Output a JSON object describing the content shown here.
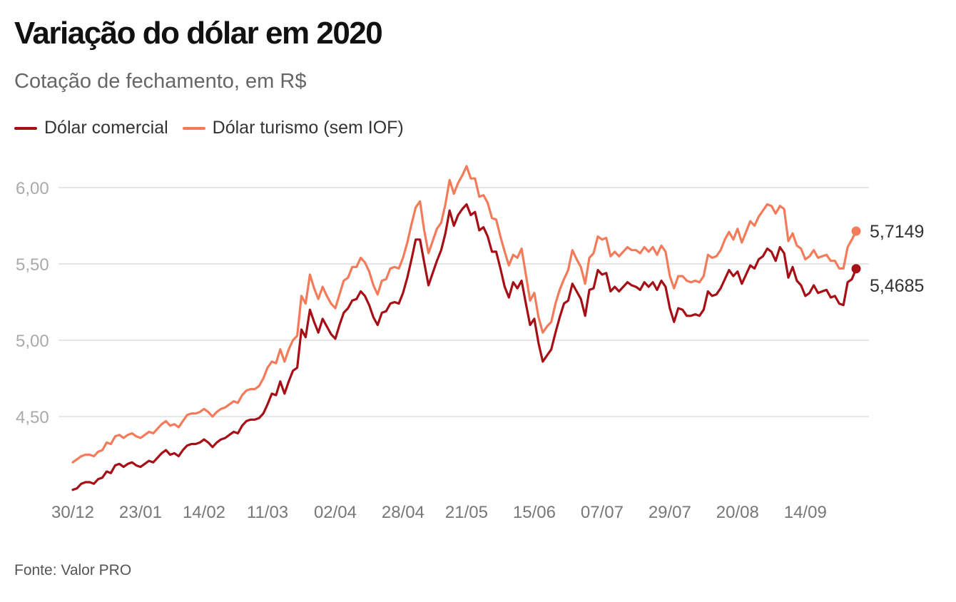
{
  "title": "Variação do dólar em 2020",
  "subtitle": "Cotação de fechamento, em R$",
  "source": "Fonte: Valor PRO",
  "colors": {
    "comercial": "#a50f15",
    "turismo": "#f47b5a",
    "grid": "#dddddd"
  },
  "legend": [
    {
      "label": "Dólar comercial",
      "color": "#a50f15"
    },
    {
      "label": "Dólar turismo (sem IOF)",
      "color": "#f47b5a"
    }
  ],
  "chart_data": {
    "type": "line",
    "title": "Variação do dólar em 2020",
    "subtitle": "Cotação de fechamento, em R$",
    "ylim": [
      4.0,
      6.2
    ],
    "yticks": [
      4.5,
      5.0,
      5.5,
      6.0
    ],
    "ytick_labels": [
      "4,50",
      "5,00",
      "5,50",
      "6,00"
    ],
    "xtick_labels": [
      "30/12",
      "23/01",
      "14/02",
      "11/03",
      "02/04",
      "28/04",
      "21/05",
      "15/06",
      "07/07",
      "29/07",
      "20/08",
      "14/09"
    ],
    "xtick_indices": [
      0,
      16,
      31,
      46,
      62,
      78,
      93,
      109,
      125,
      141,
      157,
      173
    ],
    "grid": true,
    "legend_position": "top-left",
    "end_labels": [
      "5,7149",
      "5,4685"
    ],
    "series": [
      {
        "name": "Dólar comercial",
        "color": "#a50f15",
        "values": [
          4.02,
          4.03,
          4.06,
          4.07,
          4.07,
          4.06,
          4.09,
          4.1,
          4.14,
          4.13,
          4.18,
          4.19,
          4.17,
          4.19,
          4.2,
          4.18,
          4.17,
          4.19,
          4.21,
          4.2,
          4.23,
          4.26,
          4.28,
          4.25,
          4.26,
          4.24,
          4.28,
          4.31,
          4.32,
          4.32,
          4.33,
          4.35,
          4.33,
          4.3,
          4.33,
          4.35,
          4.36,
          4.38,
          4.4,
          4.39,
          4.44,
          4.47,
          4.48,
          4.48,
          4.49,
          4.52,
          4.58,
          4.65,
          4.64,
          4.73,
          4.65,
          4.73,
          4.8,
          4.82,
          5.07,
          5.02,
          5.2,
          5.12,
          5.05,
          5.14,
          5.09,
          5.04,
          5.01,
          5.1,
          5.18,
          5.21,
          5.26,
          5.27,
          5.32,
          5.29,
          5.23,
          5.15,
          5.1,
          5.18,
          5.19,
          5.24,
          5.25,
          5.24,
          5.31,
          5.41,
          5.53,
          5.66,
          5.66,
          5.51,
          5.36,
          5.44,
          5.52,
          5.59,
          5.7,
          5.85,
          5.75,
          5.82,
          5.86,
          5.89,
          5.82,
          5.84,
          5.72,
          5.74,
          5.68,
          5.58,
          5.58,
          5.47,
          5.35,
          5.28,
          5.38,
          5.34,
          5.39,
          5.24,
          5.1,
          5.14,
          4.98,
          4.86,
          4.9,
          4.94,
          5.05,
          5.15,
          5.24,
          5.26,
          5.37,
          5.32,
          5.27,
          5.16,
          5.33,
          5.34,
          5.46,
          5.43,
          5.44,
          5.32,
          5.35,
          5.32,
          5.35,
          5.38,
          5.36,
          5.35,
          5.33,
          5.38,
          5.35,
          5.38,
          5.33,
          5.39,
          5.35,
          5.21,
          5.12,
          5.21,
          5.2,
          5.16,
          5.16,
          5.17,
          5.16,
          5.2,
          5.32,
          5.29,
          5.3,
          5.34,
          5.4,
          5.46,
          5.42,
          5.45,
          5.37,
          5.43,
          5.49,
          5.47,
          5.53,
          5.55,
          5.6,
          5.58,
          5.52,
          5.61,
          5.57,
          5.41,
          5.48,
          5.39,
          5.36,
          5.29,
          5.31,
          5.36,
          5.31,
          5.32,
          5.33,
          5.28,
          5.29,
          5.24,
          5.23,
          5.38,
          5.4,
          5.4685
        ]
      },
      {
        "name": "Dólar turismo (sem IOF)",
        "color": "#f47b5a",
        "values": [
          4.2,
          4.22,
          4.24,
          4.25,
          4.25,
          4.24,
          4.27,
          4.28,
          4.33,
          4.32,
          4.37,
          4.38,
          4.36,
          4.38,
          4.39,
          4.37,
          4.36,
          4.38,
          4.4,
          4.39,
          4.42,
          4.45,
          4.47,
          4.44,
          4.45,
          4.43,
          4.47,
          4.51,
          4.52,
          4.52,
          4.53,
          4.55,
          4.53,
          4.5,
          4.53,
          4.55,
          4.56,
          4.58,
          4.6,
          4.59,
          4.64,
          4.67,
          4.68,
          4.68,
          4.7,
          4.75,
          4.82,
          4.86,
          4.85,
          4.94,
          4.86,
          4.94,
          5.0,
          5.03,
          5.29,
          5.24,
          5.43,
          5.34,
          5.27,
          5.35,
          5.29,
          5.24,
          5.21,
          5.3,
          5.39,
          5.41,
          5.48,
          5.48,
          5.54,
          5.51,
          5.45,
          5.36,
          5.3,
          5.39,
          5.4,
          5.47,
          5.48,
          5.47,
          5.54,
          5.64,
          5.76,
          5.87,
          5.91,
          5.72,
          5.57,
          5.65,
          5.73,
          5.77,
          5.89,
          6.05,
          5.96,
          6.03,
          6.08,
          6.14,
          6.06,
          6.06,
          5.94,
          5.95,
          5.9,
          5.8,
          5.79,
          5.68,
          5.58,
          5.49,
          5.56,
          5.54,
          5.6,
          5.43,
          5.26,
          5.31,
          5.15,
          5.05,
          5.09,
          5.12,
          5.24,
          5.33,
          5.4,
          5.46,
          5.59,
          5.53,
          5.48,
          5.37,
          5.54,
          5.57,
          5.68,
          5.66,
          5.67,
          5.55,
          5.58,
          5.55,
          5.58,
          5.61,
          5.59,
          5.59,
          5.57,
          5.61,
          5.58,
          5.61,
          5.56,
          5.62,
          5.58,
          5.42,
          5.34,
          5.42,
          5.42,
          5.39,
          5.38,
          5.39,
          5.38,
          5.42,
          5.56,
          5.54,
          5.55,
          5.59,
          5.66,
          5.71,
          5.66,
          5.73,
          5.64,
          5.71,
          5.78,
          5.75,
          5.81,
          5.85,
          5.89,
          5.88,
          5.83,
          5.88,
          5.86,
          5.65,
          5.7,
          5.62,
          5.6,
          5.53,
          5.55,
          5.59,
          5.54,
          5.55,
          5.56,
          5.52,
          5.52,
          5.47,
          5.47,
          5.61,
          5.66,
          5.7149
        ]
      }
    ]
  }
}
